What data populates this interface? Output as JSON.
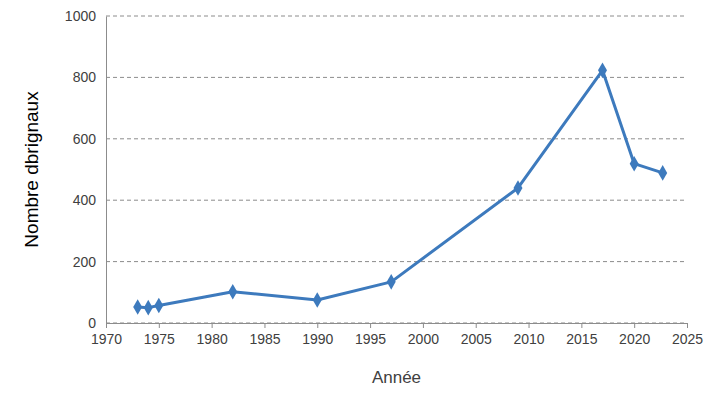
{
  "chart_data": {
    "type": "line",
    "xlabel": "Année",
    "ylabel": "Nombre dbrignaux",
    "x": [
      1973,
      1974,
      1975,
      1982,
      1990,
      1997,
      2009,
      2017,
      2020,
      2022.7
    ],
    "values": [
      52,
      50,
      57,
      102,
      75,
      134,
      440,
      823,
      519,
      489
    ],
    "color": "#3d7abd",
    "marker": "diamond",
    "xlim": [
      1970,
      2025
    ],
    "xticks": [
      1970,
      1975,
      1980,
      1985,
      1990,
      1995,
      2000,
      2005,
      2010,
      2015,
      2020,
      2025
    ],
    "ylim": [
      0,
      1000
    ],
    "yticks": [
      0,
      200,
      400,
      600,
      800,
      1000
    ],
    "grid": true
  }
}
